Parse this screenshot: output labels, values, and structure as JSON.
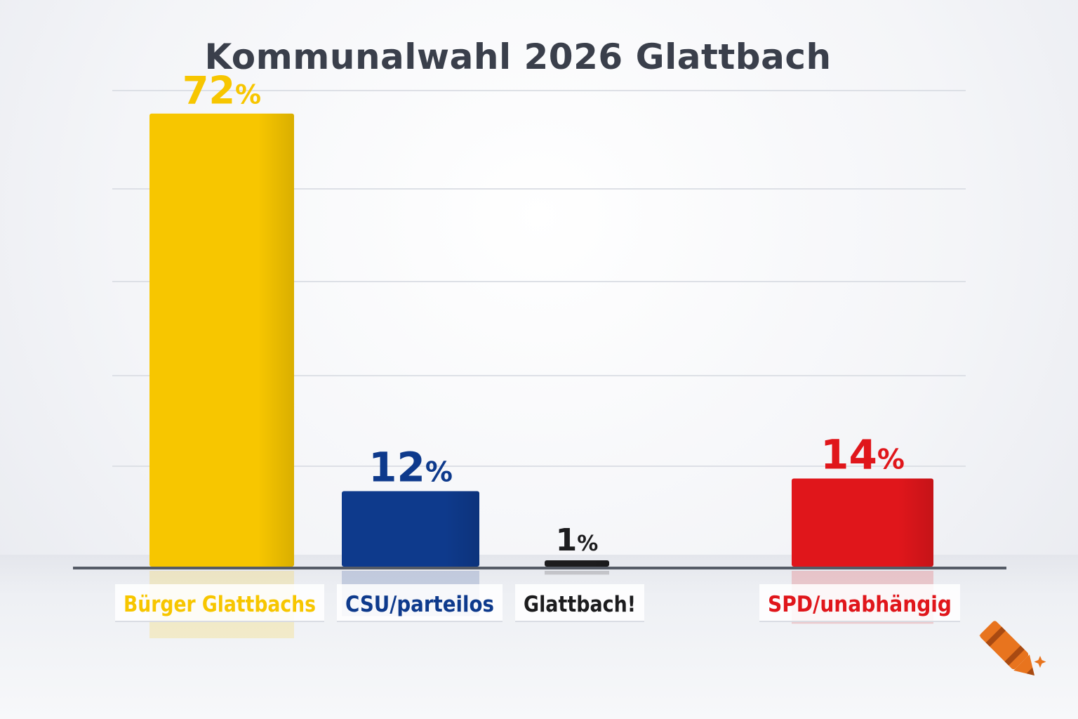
{
  "chart_data": {
    "type": "bar",
    "title": "Kommunalwahl 2026 Glattbach",
    "xlabel": "",
    "ylabel": "",
    "ylim": [
      0,
      80
    ],
    "grid": true,
    "categories": [
      "Bürger Glattbachs",
      "CSU/parteilos",
      "Glattbach!",
      "SPD/unabhängig"
    ],
    "values": [
      72,
      12,
      1,
      14
    ],
    "value_labels": [
      "72",
      "12",
      "1",
      "14"
    ],
    "value_suffix": "%",
    "colors": [
      "#f7c600",
      "#0e3a8c",
      "#1c1c1e",
      "#e0161b"
    ]
  },
  "logo": {
    "icon": "crayon-icon",
    "colors": [
      "#e8741e",
      "#a84a12"
    ]
  }
}
